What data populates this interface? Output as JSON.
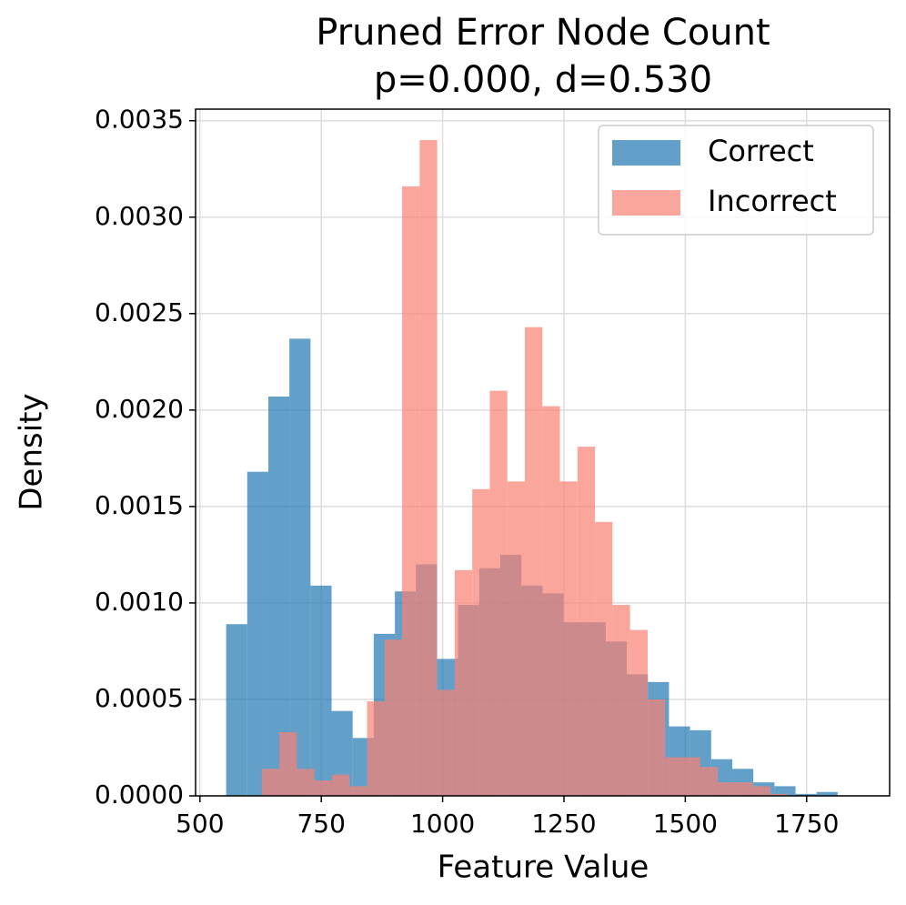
{
  "chart_data": {
    "type": "histogram",
    "title": "Pruned Error Node Count",
    "subtitle": "p=0.000, d=0.530",
    "x_label": "Feature Value",
    "y_label": "Density",
    "xlim": [
      491,
      1921
    ],
    "ylim": [
      0,
      0.00356
    ],
    "xticks": [
      500,
      750,
      1000,
      1250,
      1500,
      1750
    ],
    "yticks": [
      {
        "value": 0,
        "label": "0.0000"
      },
      {
        "value": 0.0005,
        "label": "0.0005"
      },
      {
        "value": 0.001,
        "label": "0.0010"
      },
      {
        "value": 0.0015,
        "label": "0.0015"
      },
      {
        "value": 0.002,
        "label": "0.0020"
      },
      {
        "value": 0.0025,
        "label": "0.0025"
      },
      {
        "value": 0.003,
        "label": "0.0030"
      },
      {
        "value": 0.0035,
        "label": "0.0035"
      }
    ],
    "grid": true,
    "legend": "upper right",
    "opacity": 0.7,
    "series": [
      {
        "name": "Correct",
        "color": "#1f77b4",
        "bins": [
          554,
          597.4,
          640.9,
          684.3,
          727.8,
          771.2,
          814.7,
          858.1,
          901.6,
          945,
          988.5,
          1031.9,
          1075.4,
          1118.8,
          1162.3,
          1205.7,
          1249.2,
          1292.6,
          1336.1,
          1379.5,
          1423,
          1466.4,
          1509.9,
          1553.3,
          1596.8,
          1640.2,
          1683.7,
          1727.1,
          1770.6,
          1814
        ],
        "values": [
          0.00089,
          0.00168,
          0.00207,
          0.00237,
          0.00109,
          0.00044,
          0.0003,
          0.00084,
          0.00106,
          0.0012,
          0.00071,
          0.00099,
          0.00118,
          0.00125,
          0.00109,
          0.00105,
          0.0009,
          0.0009,
          0.0008,
          0.00063,
          0.00059,
          0.00036,
          0.00034,
          0.00019,
          0.00014,
          7e-05,
          5e-05,
          1e-05,
          2e-05
        ]
      },
      {
        "name": "Incorrect",
        "color": "#fa8072",
        "bins": [
          627.5,
          663.6,
          699.8,
          735.9,
          772,
          808.2,
          844.3,
          880.4,
          916.5,
          952.7,
          988.8,
          1024.9,
          1061.1,
          1097.2,
          1133.3,
          1169.5,
          1205.6,
          1241.7,
          1277.8,
          1314,
          1350.1,
          1386.2,
          1422.4,
          1458.5,
          1494.6,
          1530.8,
          1566.9,
          1603,
          1639.1,
          1675.3,
          1711.4
        ],
        "values": [
          0.00014,
          0.00033,
          0.00014,
          8e-05,
          0.00011,
          5e-05,
          0.00049,
          0.00081,
          0.00316,
          0.0034,
          0.00055,
          0.00117,
          0.00159,
          0.0021,
          0.00163,
          0.00243,
          0.00202,
          0.00163,
          0.00181,
          0.00142,
          0.00099,
          0.00086,
          0.0005,
          0.0002,
          0.0002,
          0.00015,
          7e-05,
          7e-05,
          5e-05,
          1e-05
        ]
      }
    ]
  }
}
